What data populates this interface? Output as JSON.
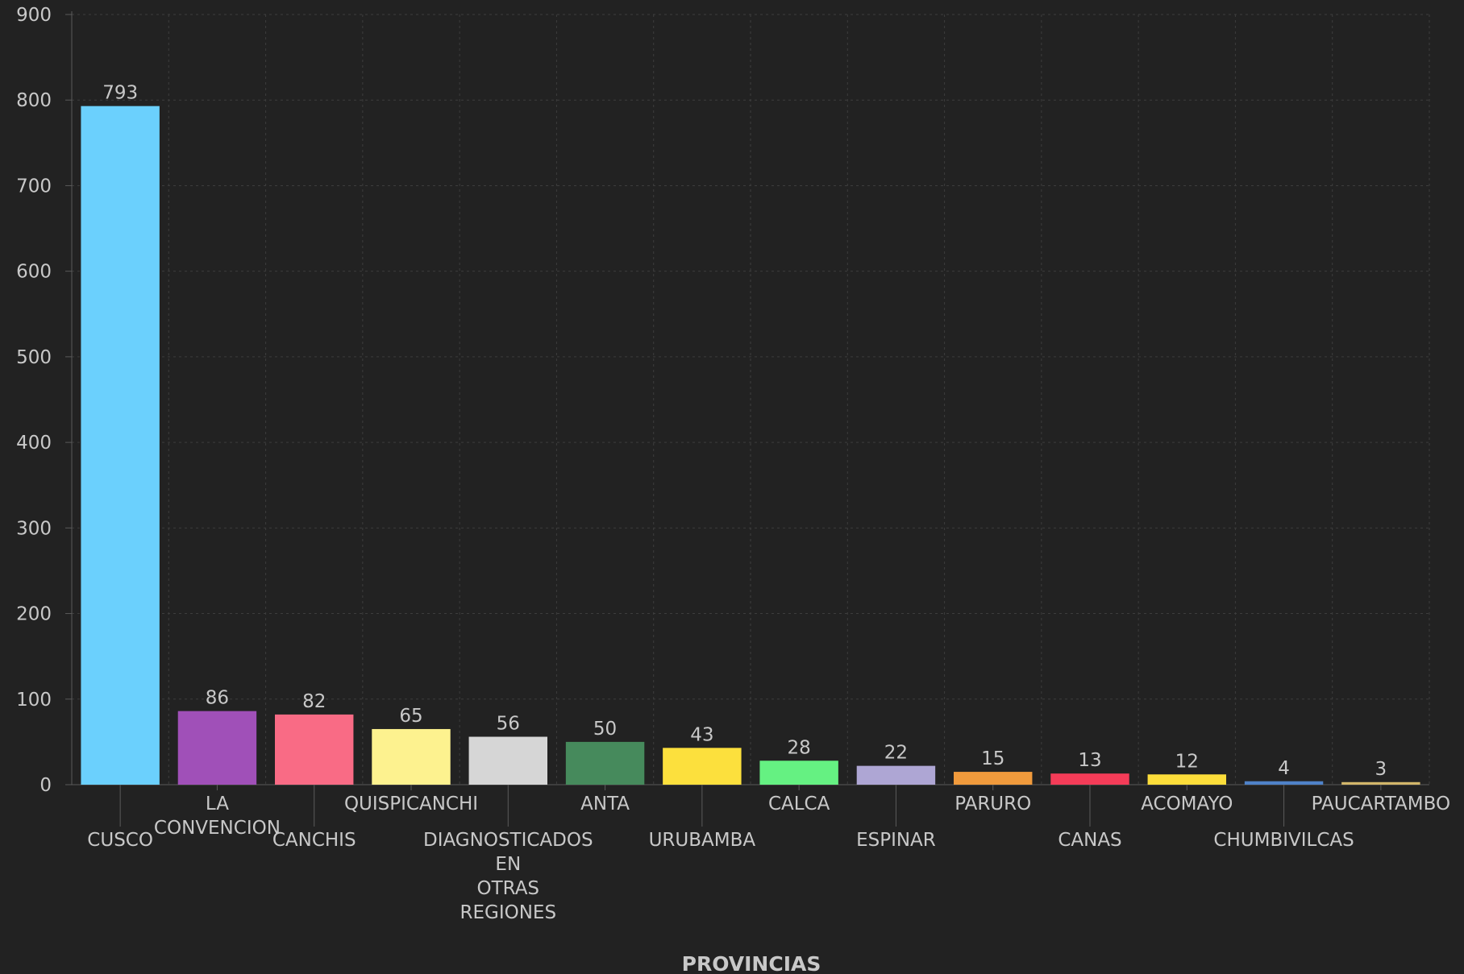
{
  "chart_data": {
    "type": "bar",
    "title": "",
    "xlabel": "PROVINCIAS",
    "ylabel": "",
    "ylim": [
      0,
      900
    ],
    "yticks": [
      0,
      100,
      200,
      300,
      400,
      500,
      600,
      700,
      800,
      900
    ],
    "grid": true,
    "legend": "none",
    "categories": [
      "CUSCO",
      "LA CONVENCION",
      "CANCHIS",
      "QUISPICANCHI",
      "DIAGNOSTICADOS EN OTRAS REGIONES",
      "ANTA",
      "URUBAMBA",
      "CALCA",
      "ESPINAR",
      "PARURO",
      "CANAS",
      "ACOMAYO",
      "CHUMBIVILCAS",
      "PAUCARTAMBO"
    ],
    "values": [
      793,
      86,
      82,
      65,
      56,
      50,
      43,
      28,
      22,
      15,
      13,
      12,
      4,
      3
    ],
    "colors": [
      "#6bd0fd",
      "#a050b8",
      "#f96b85",
      "#fdf28f",
      "#d6d6d6",
      "#468a5c",
      "#fce03d",
      "#65f182",
      "#aea6d4",
      "#f09a3c",
      "#f43c58",
      "#fcdd3a",
      "#4f82c8",
      "#d2b66a"
    ]
  }
}
